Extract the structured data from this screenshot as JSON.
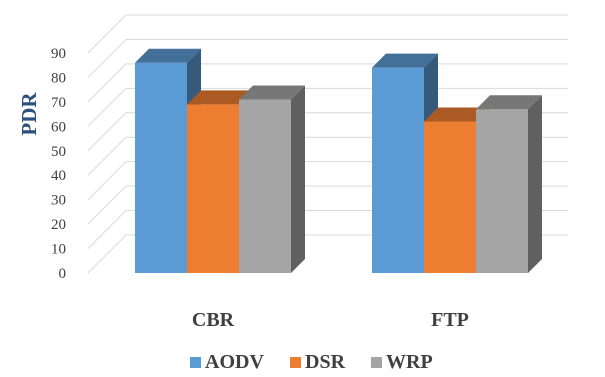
{
  "chart_data": {
    "type": "bar",
    "title": "",
    "xlabel": "",
    "ylabel": "PDR",
    "categories": [
      "CBR",
      "FTP"
    ],
    "series": [
      {
        "name": "AODV",
        "values": [
          86,
          84
        ],
        "color": "#5b9bd5"
      },
      {
        "name": "DSR",
        "values": [
          69,
          62
        ],
        "color": "#ed7d31"
      },
      {
        "name": "WRP",
        "values": [
          71,
          67
        ],
        "color": "#a5a5a5"
      }
    ],
    "ylim": [
      0,
      90
    ],
    "yticks": [
      0,
      10,
      20,
      30,
      40,
      50,
      60,
      70,
      80,
      90
    ],
    "grid": true,
    "legend_position": "bottom"
  }
}
